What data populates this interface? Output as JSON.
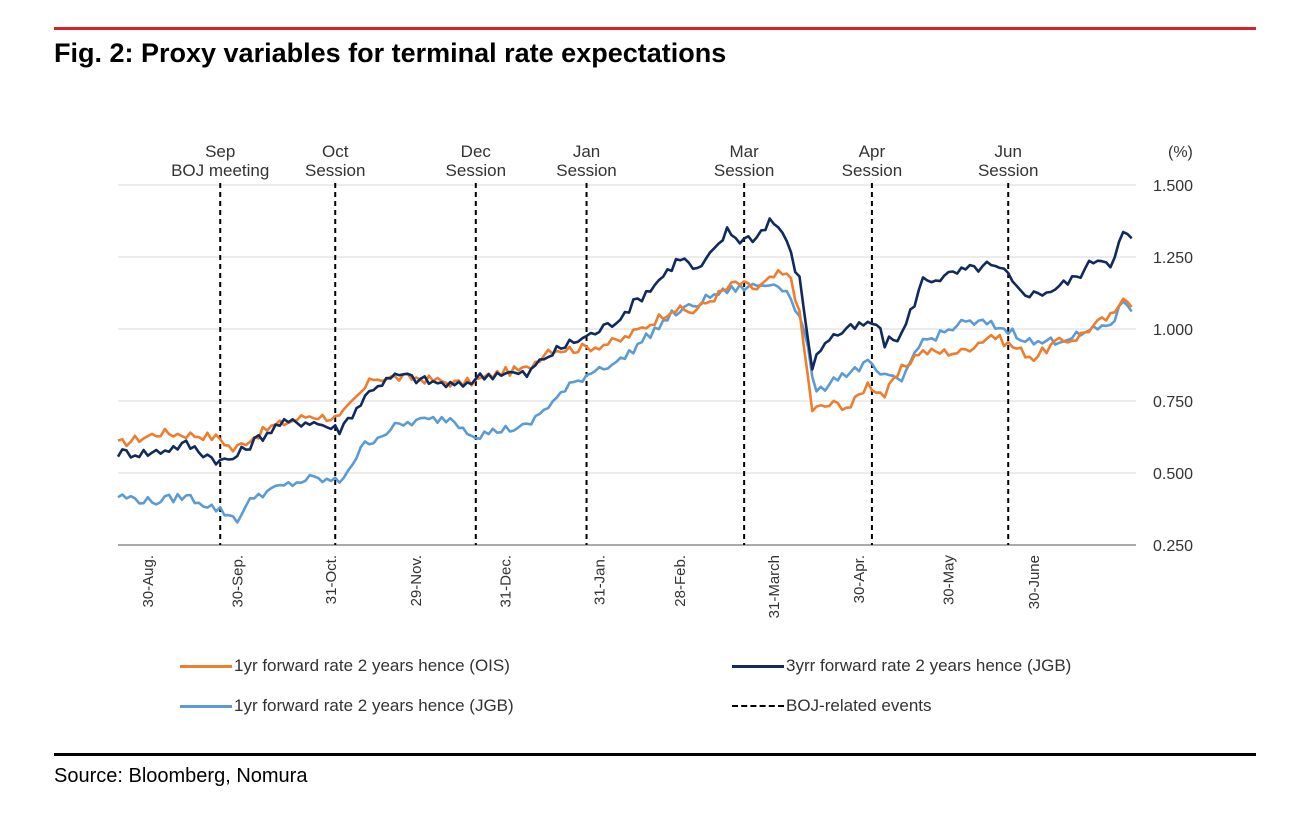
{
  "title": "Fig. 2: Proxy variables for terminal rate expectations",
  "source": "Source: Bloomberg, Nomura",
  "colors": {
    "accent_rule": "#d6202a",
    "ois_1yr": "#ee7d2d",
    "jgb_3yr": "#112a5e",
    "jgb_1yr": "#5b9bd5",
    "events": "#000000"
  },
  "chart_data": {
    "type": "line",
    "unit_label": "(%)",
    "ylim": [
      0.25,
      1.5
    ],
    "yticks": [
      "1.500",
      "1.250",
      "1.000",
      "0.750",
      "0.500",
      "0.250"
    ],
    "ytick_values": [
      1.5,
      1.25,
      1.0,
      0.75,
      0.5,
      0.25
    ],
    "grid": true,
    "x_tick_labels": [
      "30-Aug.",
      "30-Sep.",
      "31-Oct.",
      "29-Nov.",
      "31-Dec.",
      "31-Jan.",
      "28-Feb.",
      "31-March",
      "30-Apr.",
      "30-May",
      "30-June"
    ],
    "x_tick_index": [
      7,
      28,
      50,
      70,
      91,
      113,
      132,
      154,
      174,
      195,
      215
    ],
    "events": [
      {
        "line1": "Sep",
        "line2": "BOJ meeting",
        "index": 24
      },
      {
        "line1": "Oct",
        "line2": "Session",
        "index": 51
      },
      {
        "line1": "Dec",
        "line2": "Session",
        "index": 84
      },
      {
        "line1": "Jan",
        "line2": "Session",
        "index": 110
      },
      {
        "line1": "Mar",
        "line2": "Session",
        "index": 147
      },
      {
        "line1": "Apr",
        "line2": "Session",
        "index": 177
      },
      {
        "line1": "Jun",
        "line2": "Session",
        "index": 209
      }
    ],
    "n_points": 240,
    "series": [
      {
        "name": "1yr forward rate 2 years hence (OIS)",
        "key": "ois",
        "anchors": [
          [
            0,
            0.6
          ],
          [
            10,
            0.64
          ],
          [
            20,
            0.63
          ],
          [
            24,
            0.62
          ],
          [
            27,
            0.58
          ],
          [
            30,
            0.61
          ],
          [
            36,
            0.66
          ],
          [
            45,
            0.7
          ],
          [
            52,
            0.69
          ],
          [
            60,
            0.83
          ],
          [
            70,
            0.83
          ],
          [
            80,
            0.81
          ],
          [
            84,
            0.82
          ],
          [
            90,
            0.85
          ],
          [
            96,
            0.86
          ],
          [
            101,
            0.93
          ],
          [
            107,
            0.93
          ],
          [
            112,
            0.94
          ],
          [
            118,
            0.96
          ],
          [
            125,
            1.02
          ],
          [
            130,
            1.07
          ],
          [
            135,
            1.06
          ],
          [
            140,
            1.11
          ],
          [
            145,
            1.16
          ],
          [
            150,
            1.14
          ],
          [
            155,
            1.19
          ],
          [
            158,
            1.18
          ],
          [
            160,
            1.05
          ],
          [
            163,
            0.72
          ],
          [
            168,
            0.74
          ],
          [
            172,
            0.73
          ],
          [
            176,
            0.81
          ],
          [
            180,
            0.77
          ],
          [
            184,
            0.86
          ],
          [
            188,
            0.92
          ],
          [
            193,
            0.92
          ],
          [
            198,
            0.92
          ],
          [
            205,
            0.98
          ],
          [
            210,
            0.94
          ],
          [
            215,
            0.9
          ],
          [
            220,
            0.95
          ],
          [
            225,
            0.97
          ],
          [
            230,
            1.02
          ],
          [
            234,
            1.05
          ],
          [
            236,
            1.12
          ],
          [
            238,
            1.09
          ]
        ],
        "amp": 0.016
      },
      {
        "name": "3yrr forward rate 2 years hence (JGB)",
        "key": "jgb3",
        "anchors": [
          [
            0,
            0.57
          ],
          [
            8,
            0.57
          ],
          [
            16,
            0.6
          ],
          [
            24,
            0.54
          ],
          [
            27,
            0.55
          ],
          [
            32,
            0.61
          ],
          [
            38,
            0.67
          ],
          [
            45,
            0.68
          ],
          [
            52,
            0.65
          ],
          [
            60,
            0.8
          ],
          [
            66,
            0.84
          ],
          [
            72,
            0.82
          ],
          [
            80,
            0.8
          ],
          [
            84,
            0.83
          ],
          [
            90,
            0.85
          ],
          [
            96,
            0.84
          ],
          [
            100,
            0.9
          ],
          [
            106,
            0.95
          ],
          [
            111,
            0.98
          ],
          [
            116,
            1.02
          ],
          [
            122,
            1.1
          ],
          [
            127,
            1.17
          ],
          [
            132,
            1.25
          ],
          [
            136,
            1.2
          ],
          [
            140,
            1.27
          ],
          [
            143,
            1.34
          ],
          [
            146,
            1.31
          ],
          [
            150,
            1.32
          ],
          [
            153,
            1.38
          ],
          [
            156,
            1.34
          ],
          [
            160,
            1.17
          ],
          [
            163,
            0.87
          ],
          [
            166,
            0.96
          ],
          [
            170,
            0.99
          ],
          [
            174,
            1.01
          ],
          [
            178,
            1.02
          ],
          [
            180,
            0.95
          ],
          [
            184,
            0.98
          ],
          [
            189,
            1.17
          ],
          [
            194,
            1.18
          ],
          [
            198,
            1.2
          ],
          [
            204,
            1.22
          ],
          [
            208,
            1.2
          ],
          [
            211,
            1.14
          ],
          [
            215,
            1.12
          ],
          [
            220,
            1.14
          ],
          [
            225,
            1.18
          ],
          [
            230,
            1.25
          ],
          [
            233,
            1.23
          ],
          [
            236,
            1.33
          ],
          [
            238,
            1.31
          ]
        ],
        "amp": 0.018
      },
      {
        "name": "1yr forward rate 2 years hence (JGB)",
        "key": "jgb1",
        "anchors": [
          [
            0,
            0.42
          ],
          [
            8,
            0.4
          ],
          [
            16,
            0.42
          ],
          [
            24,
            0.37
          ],
          [
            28,
            0.34
          ],
          [
            32,
            0.42
          ],
          [
            38,
            0.45
          ],
          [
            45,
            0.48
          ],
          [
            52,
            0.47
          ],
          [
            58,
            0.6
          ],
          [
            65,
            0.66
          ],
          [
            70,
            0.68
          ],
          [
            78,
            0.69
          ],
          [
            84,
            0.63
          ],
          [
            90,
            0.65
          ],
          [
            96,
            0.66
          ],
          [
            100,
            0.72
          ],
          [
            106,
            0.8
          ],
          [
            112,
            0.86
          ],
          [
            118,
            0.89
          ],
          [
            124,
            0.97
          ],
          [
            130,
            1.05
          ],
          [
            135,
            1.08
          ],
          [
            140,
            1.12
          ],
          [
            145,
            1.14
          ],
          [
            150,
            1.15
          ],
          [
            155,
            1.16
          ],
          [
            158,
            1.11
          ],
          [
            161,
            1.0
          ],
          [
            164,
            0.77
          ],
          [
            168,
            0.83
          ],
          [
            172,
            0.85
          ],
          [
            176,
            0.88
          ],
          [
            180,
            0.83
          ],
          [
            184,
            0.82
          ],
          [
            188,
            0.95
          ],
          [
            193,
            0.98
          ],
          [
            198,
            1.02
          ],
          [
            204,
            1.02
          ],
          [
            210,
            0.99
          ],
          [
            215,
            0.95
          ],
          [
            220,
            0.96
          ],
          [
            226,
            0.98
          ],
          [
            230,
            1.0
          ],
          [
            234,
            1.03
          ],
          [
            236,
            1.1
          ],
          [
            238,
            1.07
          ]
        ],
        "amp": 0.015
      }
    ],
    "legend": [
      {
        "label": "1yr forward rate 2 years hence (OIS)",
        "style": "solid",
        "color": "#ee7d2d"
      },
      {
        "label": "3yrr forward rate 2 years hence (JGB)",
        "style": "solid",
        "color": "#112a5e"
      },
      {
        "label": "1yr forward rate 2 years hence (JGB)",
        "style": "solid",
        "color": "#5b9bd5"
      },
      {
        "label": "BOJ-related events",
        "style": "dashed",
        "color": "#000000"
      }
    ]
  }
}
